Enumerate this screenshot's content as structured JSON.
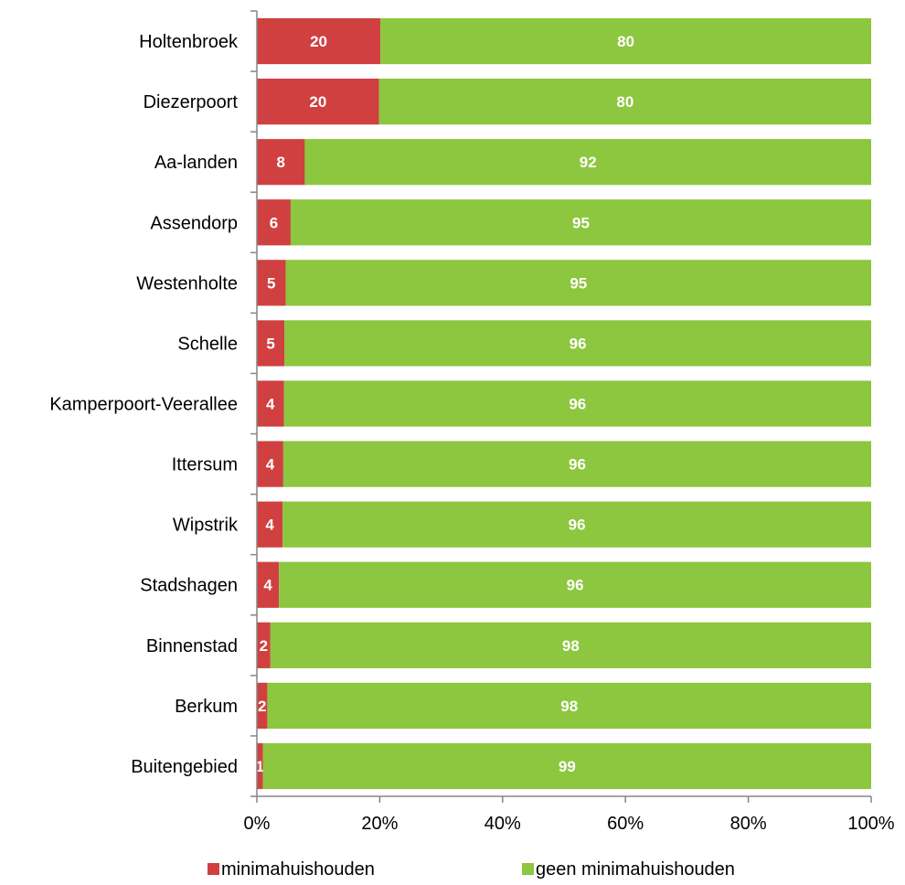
{
  "chart_data": {
    "type": "bar",
    "orientation": "horizontal",
    "stacked": "percent",
    "categories": [
      "Holtenbroek",
      "Diezerpoort",
      "Aa-landen",
      "Assendorp",
      "Westenholte",
      "Schelle",
      "Kamperpoort-Veerallee",
      "Ittersum",
      "Wipstrik",
      "Stadshagen",
      "Binnenstad",
      "Berkum",
      "Buitengebied"
    ],
    "series": [
      {
        "name": "minimahuishouden",
        "color": "#d04040",
        "values": [
          20.1,
          19.9,
          7.8,
          5.5,
          4.7,
          4.5,
          4.4,
          4.3,
          4.2,
          3.6,
          2.2,
          1.7,
          1.0
        ],
        "labels": [
          "20",
          "20",
          "8",
          "6",
          "5",
          "5",
          "4",
          "4",
          "4",
          "4",
          "2",
          "2",
          "1"
        ]
      },
      {
        "name": "geen minimahuishouden",
        "color": "#8dc63f",
        "values": [
          79.9,
          80.1,
          92.2,
          94.5,
          95.3,
          95.5,
          95.6,
          95.7,
          95.8,
          96.4,
          97.8,
          98.3,
          99.0
        ],
        "labels": [
          "80",
          "80",
          "92",
          "95",
          "95",
          "96",
          "96",
          "96",
          "96",
          "96",
          "98",
          "98",
          "99"
        ]
      }
    ],
    "xlim": [
      0,
      100
    ],
    "xticks": [
      0,
      20,
      40,
      60,
      80,
      100
    ],
    "xtick_labels": [
      "0%",
      "20%",
      "40%",
      "60%",
      "80%",
      "100%"
    ],
    "grid": false,
    "legend_position": "bottom",
    "title": "",
    "xlabel": "",
    "ylabel": ""
  }
}
